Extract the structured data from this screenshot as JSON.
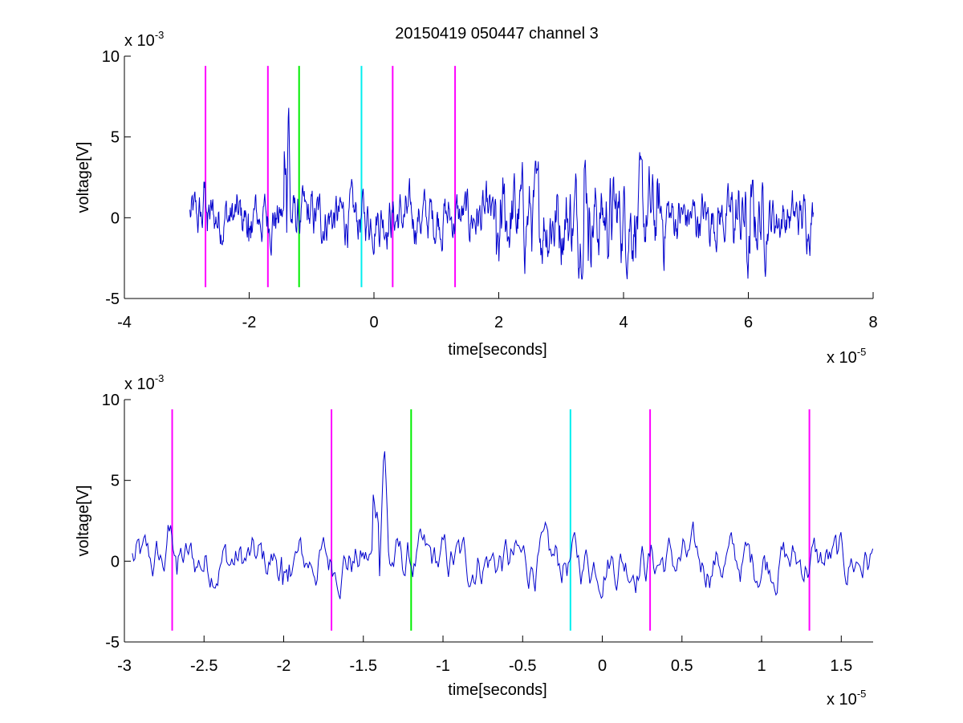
{
  "figure_title": "20150419 050447 channel 3",
  "colors": {
    "trace": "#0000cc",
    "magenta": "#ff00ff",
    "green": "#00ee00",
    "cyan": "#00eeee",
    "axis": "#000000"
  },
  "chart_data": [
    {
      "type": "line",
      "title": "20150419 050447 channel 3",
      "xlabel": "time[seconds]",
      "ylabel": "voltage[V]",
      "x_multiplier": "x 10",
      "x_multiplier_exp": "-5",
      "y_multiplier": "x 10",
      "y_multiplier_exp": "-3",
      "xlim": [
        -4,
        8
      ],
      "ylim": [
        -5,
        10
      ],
      "xticks": [
        -4,
        -2,
        0,
        2,
        4,
        6,
        8
      ],
      "yticks": [
        -5,
        0,
        5,
        10
      ],
      "xtick_labels": [
        "-4",
        "-2",
        "0",
        "2",
        "4",
        "6",
        "8"
      ],
      "ytick_labels": [
        "-5",
        "0",
        "5",
        "10"
      ],
      "grid": false,
      "series": [
        {
          "color": "#0000cc",
          "x_range": [
            -2.95,
            7.05
          ],
          "y_range": [
            -3.8,
            8.5
          ],
          "notable_points": [
            {
              "x": -1.37,
              "y": 8.5
            },
            {
              "x": -1.4,
              "y": 3.8
            },
            {
              "x": 1.99,
              "y": -3.8
            },
            {
              "x": 3.4,
              "y": 3.5
            },
            {
              "x": 6.0,
              "y": -3.3
            }
          ]
        }
      ],
      "vertical_markers": [
        {
          "x": -2.7,
          "y_range": [
            -4.3,
            9.4
          ],
          "color": "#ff00ff"
        },
        {
          "x": -1.7,
          "y_range": [
            -4.3,
            9.4
          ],
          "color": "#ff00ff"
        },
        {
          "x": -1.2,
          "y_range": [
            -4.3,
            9.4
          ],
          "color": "#00ee00"
        },
        {
          "x": -0.2,
          "y_range": [
            -4.3,
            9.4
          ],
          "color": "#00eeee"
        },
        {
          "x": 0.3,
          "y_range": [
            -4.3,
            9.4
          ],
          "color": "#ff00ff"
        },
        {
          "x": 1.3,
          "y_range": [
            -4.3,
            9.4
          ],
          "color": "#ff00ff"
        }
      ]
    },
    {
      "type": "line",
      "title": "",
      "xlabel": "time[seconds]",
      "ylabel": "voltage[V]",
      "x_multiplier": "x 10",
      "x_multiplier_exp": "-5",
      "y_multiplier": "x 10",
      "y_multiplier_exp": "-3",
      "xlim": [
        -3,
        1.7
      ],
      "ylim": [
        -5,
        10
      ],
      "xticks": [
        -3,
        -2.5,
        -2,
        -1.5,
        -1,
        -0.5,
        0,
        0.5,
        1,
        1.5
      ],
      "yticks": [
        -5,
        0,
        5,
        10
      ],
      "xtick_labels": [
        "-3",
        "-2.5",
        "-2",
        "-1.5",
        "-1",
        "-0.5",
        "0",
        "0.5",
        "1",
        "1.5"
      ],
      "ytick_labels": [
        "-5",
        "0",
        "5",
        "10"
      ],
      "grid": false,
      "series": [
        {
          "color": "#0000cc",
          "x_range": [
            -2.95,
            1.7
          ],
          "y_range": [
            -3.0,
            8.5
          ],
          "notable_points": [
            {
              "x": -1.37,
              "y": 8.5
            },
            {
              "x": -1.99,
              "y": -3.0
            },
            {
              "x": -2.7,
              "y": 2.1
            },
            {
              "x": -1.2,
              "y": 2.2
            },
            {
              "x": 0.9,
              "y": 1.9
            }
          ]
        }
      ],
      "vertical_markers": [
        {
          "x": -2.7,
          "y_range": [
            -4.3,
            9.4
          ],
          "color": "#ff00ff"
        },
        {
          "x": -1.7,
          "y_range": [
            -4.3,
            9.4
          ],
          "color": "#ff00ff"
        },
        {
          "x": -1.2,
          "y_range": [
            -4.3,
            9.4
          ],
          "color": "#00ee00"
        },
        {
          "x": -0.2,
          "y_range": [
            -4.3,
            9.4
          ],
          "color": "#00eeee"
        },
        {
          "x": 0.3,
          "y_range": [
            -4.3,
            9.4
          ],
          "color": "#ff00ff"
        },
        {
          "x": 1.3,
          "y_range": [
            -4.3,
            9.4
          ],
          "color": "#ff00ff"
        }
      ]
    }
  ]
}
